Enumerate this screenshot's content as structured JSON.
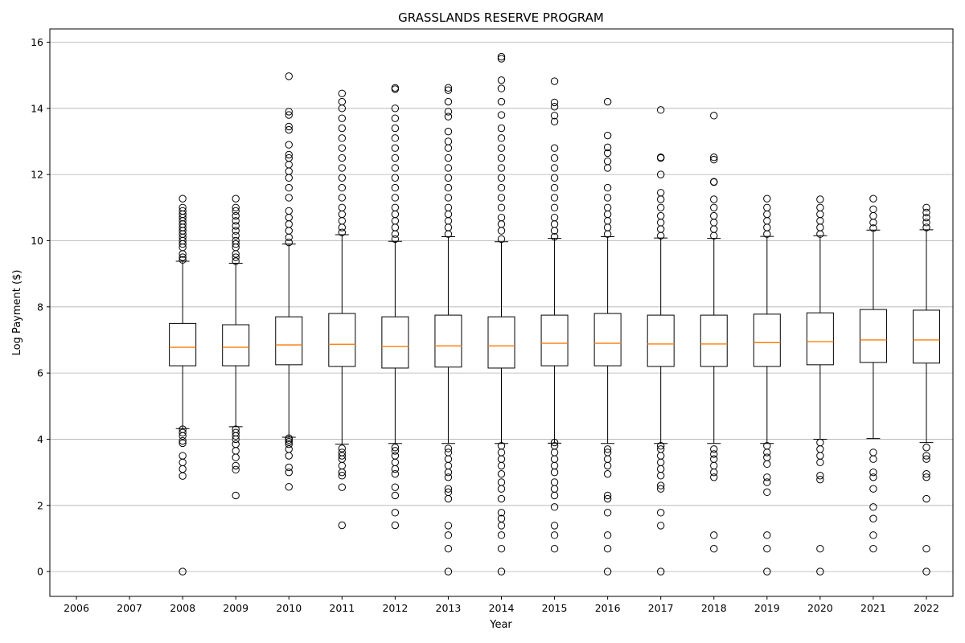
{
  "chart_data": {
    "type": "box",
    "title": "GRASSLANDS RESERVE PROGRAM",
    "xlabel": "Year",
    "ylabel": "Log Payment ($)",
    "categories": [
      "2006",
      "2007",
      "2008",
      "2009",
      "2010",
      "2011",
      "2012",
      "2013",
      "2014",
      "2015",
      "2016",
      "2017",
      "2018",
      "2019",
      "2020",
      "2021",
      "2022"
    ],
    "ylim": [
      -0.75,
      16.4
    ],
    "yticks": [
      0,
      2,
      4,
      6,
      8,
      10,
      12,
      14,
      16
    ],
    "grid": "y",
    "median_color": "#ff7f0e",
    "boxes": [
      {
        "year": "2006",
        "empty": true
      },
      {
        "year": "2007",
        "empty": true
      },
      {
        "year": "2008",
        "whislo": 4.32,
        "q1": 6.22,
        "med": 6.78,
        "q3": 7.5,
        "whishi": 9.38,
        "fliers": [
          0.0,
          2.89,
          3.1,
          3.3,
          3.5,
          3.88,
          3.95,
          4.1,
          4.2,
          4.3,
          9.42,
          9.5,
          9.6,
          9.8,
          9.9,
          10.0,
          10.1,
          10.2,
          10.3,
          10.4,
          10.5,
          10.6,
          10.7,
          10.8,
          10.9,
          11.0,
          11.27
        ]
      },
      {
        "year": "2009",
        "whislo": 4.38,
        "q1": 6.22,
        "med": 6.78,
        "q3": 7.46,
        "whishi": 9.32,
        "fliers": [
          2.3,
          3.08,
          3.2,
          3.45,
          3.65,
          3.85,
          4.0,
          4.1,
          4.2,
          4.3,
          9.38,
          9.5,
          9.6,
          9.8,
          9.9,
          10.0,
          10.15,
          10.3,
          10.45,
          10.6,
          10.75,
          10.9,
          11.0,
          11.27
        ]
      },
      {
        "year": "2010",
        "whislo": 4.06,
        "q1": 6.25,
        "med": 6.85,
        "q3": 7.7,
        "whishi": 9.9,
        "fliers": [
          2.56,
          3.0,
          3.15,
          3.5,
          3.7,
          3.85,
          3.92,
          3.98,
          4.03,
          9.95,
          10.1,
          10.3,
          10.5,
          10.7,
          10.9,
          11.3,
          11.6,
          11.9,
          12.1,
          12.3,
          12.5,
          12.6,
          12.9,
          13.35,
          13.45,
          13.8,
          13.9,
          14.97
        ]
      },
      {
        "year": "2011",
        "whislo": 3.85,
        "q1": 6.2,
        "med": 6.87,
        "q3": 7.8,
        "whishi": 10.18,
        "fliers": [
          1.4,
          2.55,
          2.9,
          3.0,
          3.2,
          3.4,
          3.5,
          3.6,
          3.72,
          10.25,
          10.4,
          10.6,
          10.8,
          11.0,
          11.3,
          11.6,
          11.9,
          12.2,
          12.5,
          12.8,
          13.1,
          13.4,
          13.7,
          14.0,
          14.2,
          14.45
        ]
      },
      {
        "year": "2012",
        "whislo": 3.87,
        "q1": 6.15,
        "med": 6.8,
        "q3": 7.7,
        "whishi": 9.98,
        "fliers": [
          1.4,
          1.78,
          2.3,
          2.55,
          2.95,
          3.1,
          3.3,
          3.5,
          3.65,
          3.75,
          10.05,
          10.2,
          10.4,
          10.6,
          10.8,
          11.0,
          11.3,
          11.6,
          11.9,
          12.2,
          12.5,
          12.8,
          13.1,
          13.4,
          13.7,
          14.0,
          14.58,
          14.62
        ]
      },
      {
        "year": "2013",
        "whislo": 3.87,
        "q1": 6.18,
        "med": 6.82,
        "q3": 7.75,
        "whishi": 10.12,
        "fliers": [
          0.0,
          0.69,
          1.1,
          1.39,
          2.2,
          2.4,
          2.5,
          2.85,
          3.0,
          3.2,
          3.4,
          3.6,
          3.72,
          10.2,
          10.4,
          10.6,
          10.8,
          11.0,
          11.3,
          11.6,
          11.9,
          12.2,
          12.5,
          12.8,
          13.0,
          13.3,
          13.75,
          13.9,
          14.2,
          14.55,
          14.62
        ]
      },
      {
        "year": "2014",
        "whislo": 3.87,
        "q1": 6.15,
        "med": 6.82,
        "q3": 7.7,
        "whishi": 9.97,
        "fliers": [
          0.0,
          0.69,
          1.1,
          1.39,
          1.6,
          1.78,
          2.2,
          2.5,
          2.7,
          2.95,
          3.2,
          3.4,
          3.6,
          3.8,
          10.05,
          10.3,
          10.5,
          10.7,
          11.0,
          11.3,
          11.6,
          11.9,
          12.2,
          12.5,
          12.8,
          13.1,
          13.4,
          13.8,
          14.2,
          14.6,
          14.85,
          15.5,
          15.56
        ]
      },
      {
        "year": "2015",
        "whislo": 3.88,
        "q1": 6.22,
        "med": 6.9,
        "q3": 7.75,
        "whishi": 10.07,
        "fliers": [
          0.69,
          1.1,
          1.39,
          1.95,
          2.3,
          2.5,
          2.7,
          3.0,
          3.2,
          3.4,
          3.6,
          3.8,
          3.9,
          10.12,
          10.3,
          10.5,
          10.7,
          11.0,
          11.3,
          11.6,
          11.9,
          12.2,
          12.5,
          12.8,
          13.6,
          13.78,
          14.05,
          14.18,
          14.82
        ]
      },
      {
        "year": "2016",
        "whislo": 3.87,
        "q1": 6.22,
        "med": 6.9,
        "q3": 7.8,
        "whishi": 10.12,
        "fliers": [
          0.0,
          0.69,
          1.1,
          1.78,
          2.2,
          2.3,
          2.95,
          3.2,
          3.4,
          3.6,
          3.7,
          10.2,
          10.4,
          10.6,
          10.8,
          11.0,
          11.3,
          11.6,
          12.2,
          12.4,
          12.65,
          12.82,
          13.18,
          14.2
        ]
      },
      {
        "year": "2017",
        "whislo": 3.87,
        "q1": 6.2,
        "med": 6.88,
        "q3": 7.75,
        "whishi": 10.08,
        "fliers": [
          0.0,
          1.39,
          1.78,
          2.5,
          2.6,
          2.9,
          3.1,
          3.3,
          3.5,
          3.7,
          3.8,
          10.15,
          10.35,
          10.55,
          10.75,
          11.0,
          11.25,
          11.45,
          12.0,
          12.5,
          12.52,
          13.95
        ]
      },
      {
        "year": "2018",
        "whislo": 3.87,
        "q1": 6.2,
        "med": 6.88,
        "q3": 7.75,
        "whishi": 10.07,
        "fliers": [
          0.69,
          1.1,
          2.85,
          3.0,
          3.2,
          3.4,
          3.55,
          3.7,
          10.15,
          10.35,
          10.55,
          10.75,
          11.0,
          11.25,
          11.77,
          11.78,
          12.45,
          12.52,
          13.78
        ]
      },
      {
        "year": "2019",
        "whislo": 3.87,
        "q1": 6.2,
        "med": 6.92,
        "q3": 7.78,
        "whishi": 10.13,
        "fliers": [
          0.0,
          0.69,
          1.1,
          2.4,
          2.7,
          2.85,
          3.25,
          3.45,
          3.6,
          3.8,
          10.2,
          10.4,
          10.6,
          10.8,
          11.0,
          11.27
        ]
      },
      {
        "year": "2020",
        "whislo": 4.0,
        "q1": 6.25,
        "med": 6.95,
        "q3": 7.82,
        "whishi": 10.15,
        "fliers": [
          0.0,
          0.69,
          2.78,
          2.9,
          3.3,
          3.5,
          3.7,
          3.9,
          10.2,
          10.4,
          10.6,
          10.8,
          11.0,
          11.25
        ]
      },
      {
        "year": "2021",
        "whislo": 4.02,
        "q1": 6.32,
        "med": 7.0,
        "q3": 7.92,
        "whishi": 10.32,
        "fliers": [
          0.69,
          1.1,
          1.6,
          1.95,
          2.5,
          2.85,
          3.0,
          3.4,
          3.6,
          10.38,
          10.55,
          10.75,
          10.95,
          11.27
        ]
      },
      {
        "year": "2022",
        "whislo": 3.9,
        "q1": 6.3,
        "med": 7.0,
        "q3": 7.9,
        "whishi": 10.33,
        "fliers": [
          0.0,
          0.69,
          2.2,
          2.85,
          2.95,
          3.4,
          3.5,
          3.75,
          10.4,
          10.55,
          10.7,
          10.85,
          11.0
        ]
      }
    ]
  }
}
